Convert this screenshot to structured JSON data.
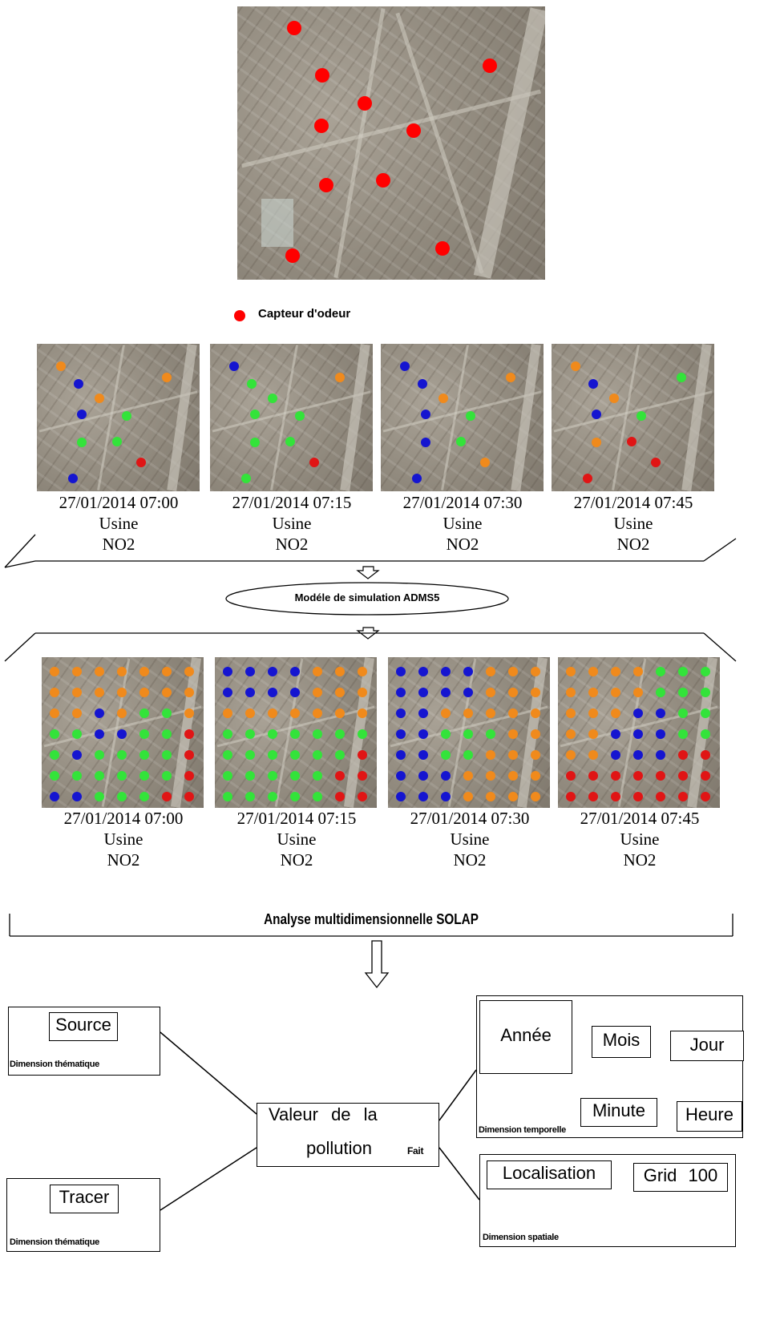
{
  "legend": {
    "label": "Capteur d'odeur",
    "color": "#ff0000"
  },
  "colors": {
    "blue": "#1515d0",
    "green": "#33e33a",
    "orange": "#f08a1c",
    "red": "#e01515"
  },
  "frames": [
    {
      "date": "27/01/2014 07:00",
      "source": "Usine",
      "pollutant": "NO2"
    },
    {
      "date": "27/01/2014 07:15",
      "source": "Usine",
      "pollutant": "NO2"
    },
    {
      "date": "27/01/2014 07:30",
      "source": "Usine",
      "pollutant": "NO2"
    },
    {
      "date": "27/01/2014 07:45",
      "source": "Usine",
      "pollutant": "NO2"
    }
  ],
  "simulation_label": "Modéle de simulation ADMS5",
  "analysis_label": "Analyse multidimensionnelle SOLAP",
  "schema": {
    "source": "Source",
    "tracer": "Tracer",
    "dim_thematic": "Dimension thématique",
    "fact_value_line1": "Valeur de la",
    "fact_value_line2": "pollution",
    "fact_label": "Fait",
    "year": "Année",
    "month": "Mois",
    "day": "Jour",
    "minute": "Minute",
    "hour": "Heure",
    "dim_temporal": "Dimension temporelle",
    "location": "Localisation",
    "grid": "Grid 100",
    "dim_spatial": "Dimension spatiale"
  }
}
